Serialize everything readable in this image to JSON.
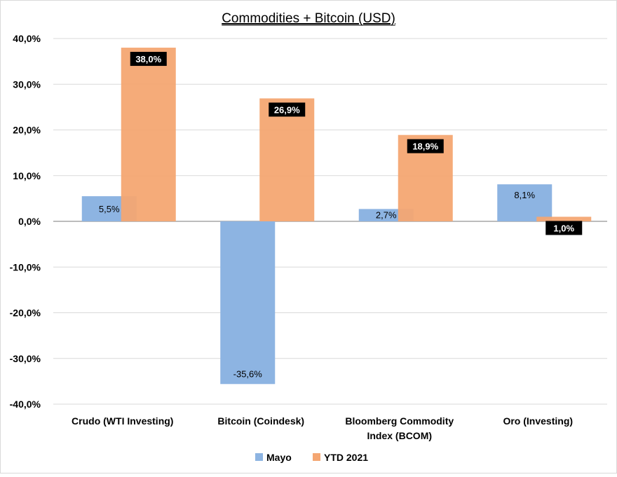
{
  "chart_data": {
    "type": "bar",
    "title": "Commodities + Bitcoin (USD)",
    "categories": [
      [
        "Crudo  (WTI  Investing)"
      ],
      [
        "Bitcoin  (Coindesk)"
      ],
      [
        "Bloomberg  Commodity",
        "Index (BCOM)"
      ],
      [
        "Oro  (Investing)"
      ]
    ],
    "series": [
      {
        "name": "Mayo",
        "values": [
          5.5,
          -35.6,
          2.7,
          8.1
        ],
        "labels": [
          "5,5%",
          "-35,6%",
          "2,7%",
          "8,1%"
        ],
        "color": "#8db4e2"
      },
      {
        "name": "YTD 2021",
        "values": [
          38.0,
          26.9,
          18.9,
          1.0
        ],
        "labels": [
          "38,0%",
          "26,9%",
          "18,9%",
          "1,0%"
        ],
        "color": "#f4a672"
      }
    ],
    "ylim": [
      -40,
      40
    ],
    "yticks": [
      40,
      30,
      20,
      10,
      0,
      -10,
      -20,
      -30,
      -40
    ],
    "ytick_labels": [
      "40,0%",
      "30,0%",
      "20,0%",
      "10,0%",
      "0,0%",
      "-10,0%",
      "-20,0%",
      "-30,0%",
      "-40,0%"
    ],
    "grid": true,
    "legend_position": "bottom",
    "xlabel": "",
    "ylabel": ""
  }
}
